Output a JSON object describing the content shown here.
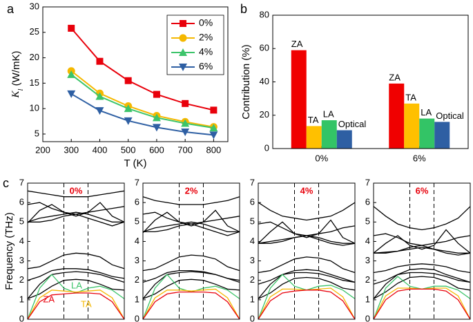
{
  "chart_data": [
    {
      "type": "line",
      "panel": "a",
      "xlabel": "T (K)",
      "ylabel_symbol": "K",
      "ylabel_subscript": "l",
      "ylabel_unit": "(W/mK)",
      "x": [
        300,
        400,
        500,
        600,
        700,
        800
      ],
      "xlim": [
        200,
        850
      ],
      "xticks": [
        200,
        300,
        400,
        500,
        600,
        700,
        800
      ],
      "ylim": [
        3.5,
        30
      ],
      "yticks": [
        5,
        10,
        15,
        20,
        25,
        30
      ],
      "legend": "upper right",
      "series": [
        {
          "name": "0%",
          "color": "#e8000b",
          "marker": "square",
          "values": [
            25.8,
            19.3,
            15.5,
            12.8,
            11.0,
            9.7
          ]
        },
        {
          "name": "2%",
          "color": "#f5b800",
          "marker": "circle",
          "values": [
            17.4,
            13.0,
            10.5,
            8.6,
            7.4,
            6.4
          ]
        },
        {
          "name": "4%",
          "color": "#3cc46a",
          "marker": "triangle-up",
          "values": [
            16.7,
            12.4,
            10.0,
            8.2,
            7.1,
            6.2
          ]
        },
        {
          "name": "6%",
          "color": "#2e5fa3",
          "marker": "triangle-down",
          "values": [
            12.9,
            9.6,
            7.6,
            6.3,
            5.4,
            4.8
          ]
        }
      ]
    },
    {
      "type": "bar",
      "panel": "b",
      "ylabel": "Contribution (%)",
      "categories": [
        "0%",
        "6%"
      ],
      "ylim": [
        0,
        80
      ],
      "yticks": [
        0,
        20,
        40,
        60,
        80
      ],
      "series": [
        {
          "name": "ZA",
          "color": "#f00000",
          "values": [
            59,
            39
          ]
        },
        {
          "name": "TA",
          "color": "#ffc000",
          "values": [
            13.5,
            27
          ]
        },
        {
          "name": "LA",
          "color": "#33c466",
          "values": [
            17,
            18
          ]
        },
        {
          "name": "Optical",
          "color": "#2e5fa3",
          "values": [
            11,
            16
          ]
        }
      ]
    },
    {
      "type": "dispersion",
      "panel": "c",
      "title": "0%",
      "ylabel": "Frequency (THz)",
      "x": [
        0,
        0.125,
        0.25,
        0.375,
        0.5,
        0.625,
        0.75,
        0.875,
        1
      ],
      "xlim": [
        0,
        1
      ],
      "vlines": [
        0.375,
        0.625
      ],
      "ylim": [
        0,
        7
      ],
      "yticks": [
        0,
        1,
        2,
        3,
        4,
        5,
        6,
        7
      ],
      "series": [
        {
          "name": "ZA",
          "color": "#e8000b",
          "values": [
            0,
            0.9,
            1.25,
            1.3,
            1.35,
            1.35,
            1.3,
            0.9,
            0
          ]
        },
        {
          "name": "TA",
          "color": "#f5b800",
          "values": [
            0,
            1.1,
            1.5,
            1.45,
            1.4,
            1.45,
            1.5,
            1.1,
            0
          ]
        },
        {
          "name": "LA",
          "color": "#3cc46a",
          "values": [
            0,
            1.6,
            2.3,
            1.6,
            1.35,
            1.6,
            1.7,
            1.5,
            1.05
          ]
        },
        {
          "color": "#000000",
          "values": [
            1.05,
            1.3,
            1.7,
            2.0,
            2.05,
            2.0,
            1.8,
            1.55,
            1.5
          ]
        },
        {
          "color": "#000000",
          "values": [
            1.05,
            1.8,
            2.3,
            2.4,
            2.45,
            2.4,
            2.3,
            2.1,
            1.9
          ]
        },
        {
          "color": "#000000",
          "values": [
            2.0,
            2.2,
            2.5,
            2.6,
            2.6,
            2.55,
            2.4,
            2.2,
            2.1
          ]
        },
        {
          "color": "#000000",
          "values": [
            2.6,
            2.7,
            3.0,
            3.3,
            3.4,
            3.35,
            3.2,
            2.8,
            2.6
          ]
        },
        {
          "color": "#000000",
          "values": [
            5.0,
            5.2,
            5.3,
            5.4,
            5.5,
            5.4,
            5.2,
            5.0,
            5.0
          ]
        },
        {
          "color": "#000000",
          "values": [
            4.95,
            5.6,
            5.9,
            5.5,
            5.3,
            5.5,
            6.0,
            5.3,
            5.0
          ]
        },
        {
          "color": "#000000",
          "values": [
            5.9,
            6.0,
            5.7,
            5.5,
            5.4,
            5.5,
            5.6,
            5.7,
            5.8
          ]
        },
        {
          "color": "#000000",
          "values": [
            6.6,
            6.5,
            6.4,
            6.3,
            6.3,
            6.3,
            6.4,
            6.5,
            6.6
          ]
        },
        {
          "color": "#000000",
          "values": [
            5.0,
            5.0,
            5.1,
            5.3,
            5.4,
            5.2,
            5.0,
            4.8,
            5.0
          ]
        }
      ]
    },
    {
      "type": "dispersion",
      "title": "2%",
      "x": [
        0,
        0.125,
        0.25,
        0.375,
        0.5,
        0.625,
        0.75,
        0.875,
        1
      ],
      "xlim": [
        0,
        1
      ],
      "vlines": [
        0.375,
        0.625
      ],
      "ylim": [
        0,
        7
      ],
      "yticks": [
        0,
        1,
        2,
        3,
        4,
        5,
        6,
        7
      ],
      "series": [
        {
          "color": "#e8000b",
          "values": [
            0,
            0.9,
            1.3,
            1.4,
            1.4,
            1.4,
            1.35,
            0.9,
            0
          ]
        },
        {
          "color": "#f5b800",
          "values": [
            0,
            1.1,
            1.5,
            1.5,
            1.45,
            1.5,
            1.55,
            1.1,
            0
          ]
        },
        {
          "color": "#3cc46a",
          "values": [
            0,
            1.6,
            2.3,
            1.6,
            1.4,
            1.6,
            1.7,
            1.5,
            1.05
          ]
        },
        {
          "color": "#000000",
          "values": [
            1.05,
            1.3,
            1.7,
            2.0,
            2.05,
            2.0,
            1.8,
            1.55,
            1.5
          ]
        },
        {
          "color": "#000000",
          "values": [
            1.05,
            1.8,
            2.3,
            2.4,
            2.45,
            2.4,
            2.3,
            2.1,
            1.9
          ]
        },
        {
          "color": "#000000",
          "values": [
            1.9,
            2.1,
            2.4,
            2.5,
            2.5,
            2.45,
            2.3,
            2.1,
            2.0
          ]
        },
        {
          "color": "#000000",
          "values": [
            2.5,
            2.6,
            2.9,
            3.2,
            3.3,
            3.25,
            3.1,
            2.7,
            2.5
          ]
        },
        {
          "color": "#000000",
          "values": [
            4.5,
            4.7,
            4.8,
            4.9,
            5.0,
            4.9,
            4.7,
            4.5,
            4.5
          ]
        },
        {
          "color": "#000000",
          "values": [
            4.45,
            5.1,
            5.5,
            5.0,
            4.8,
            5.0,
            5.6,
            4.8,
            4.5
          ]
        },
        {
          "color": "#000000",
          "values": [
            5.4,
            5.5,
            5.2,
            5.0,
            4.9,
            5.0,
            5.1,
            5.2,
            5.3
          ]
        },
        {
          "color": "#000000",
          "values": [
            6.3,
            6.1,
            6.0,
            5.9,
            5.9,
            5.9,
            6.0,
            6.1,
            6.3
          ]
        },
        {
          "color": "#000000",
          "values": [
            4.5,
            4.5,
            4.6,
            4.8,
            4.9,
            4.7,
            4.5,
            4.3,
            4.5
          ]
        }
      ]
    },
    {
      "type": "dispersion",
      "title": "4%",
      "x": [
        0,
        0.125,
        0.25,
        0.375,
        0.5,
        0.625,
        0.75,
        0.875,
        1
      ],
      "xlim": [
        0,
        1
      ],
      "vlines": [
        0.375,
        0.625
      ],
      "ylim": [
        0,
        7
      ],
      "yticks": [
        0,
        1,
        2,
        3,
        4,
        5,
        6,
        7
      ],
      "series": [
        {
          "color": "#e8000b",
          "values": [
            0,
            0.95,
            1.35,
            1.45,
            1.5,
            1.5,
            1.4,
            0.95,
            0
          ]
        },
        {
          "color": "#f5b800",
          "values": [
            0,
            1.15,
            1.55,
            1.55,
            1.5,
            1.55,
            1.6,
            1.15,
            0
          ]
        },
        {
          "color": "#3cc46a",
          "values": [
            0,
            1.6,
            2.3,
            1.7,
            1.5,
            1.7,
            1.75,
            1.5,
            1.05
          ]
        },
        {
          "color": "#000000",
          "values": [
            1.05,
            1.35,
            1.8,
            2.1,
            2.15,
            2.1,
            1.9,
            1.6,
            1.5
          ]
        },
        {
          "color": "#000000",
          "values": [
            1.05,
            1.8,
            2.3,
            2.5,
            2.55,
            2.5,
            2.3,
            2.1,
            1.9
          ]
        },
        {
          "color": "#000000",
          "values": [
            1.8,
            2.0,
            2.3,
            2.4,
            2.4,
            2.35,
            2.2,
            2.0,
            1.9
          ]
        },
        {
          "color": "#000000",
          "values": [
            2.4,
            2.5,
            2.8,
            3.1,
            3.2,
            3.15,
            3.0,
            2.6,
            2.4
          ]
        },
        {
          "color": "#000000",
          "values": [
            3.9,
            4.0,
            4.1,
            4.2,
            4.3,
            4.2,
            4.0,
            3.9,
            3.9
          ]
        },
        {
          "color": "#000000",
          "values": [
            3.9,
            4.5,
            5.0,
            4.4,
            4.2,
            4.4,
            5.1,
            4.2,
            3.9
          ]
        },
        {
          "color": "#000000",
          "values": [
            4.9,
            5.0,
            4.7,
            4.4,
            4.3,
            4.4,
            4.5,
            4.7,
            4.8
          ]
        },
        {
          "color": "#000000",
          "values": [
            6.0,
            5.6,
            5.3,
            5.2,
            5.1,
            5.2,
            5.3,
            5.6,
            6.0
          ]
        },
        {
          "color": "#000000",
          "values": [
            3.9,
            3.9,
            4.0,
            4.2,
            4.3,
            4.1,
            3.9,
            3.8,
            3.9
          ]
        }
      ]
    },
    {
      "type": "dispersion",
      "title": "6%",
      "x": [
        0,
        0.125,
        0.25,
        0.375,
        0.5,
        0.625,
        0.75,
        0.875,
        1
      ],
      "xlim": [
        0,
        1
      ],
      "vlines": [
        0.375,
        0.625
      ],
      "ylim": [
        0,
        7
      ],
      "yticks": [
        0,
        1,
        2,
        3,
        4,
        5,
        6,
        7
      ],
      "series": [
        {
          "color": "#e8000b",
          "values": [
            0,
            1.0,
            1.45,
            1.55,
            1.55,
            1.55,
            1.45,
            1.0,
            0
          ]
        },
        {
          "color": "#f5b800",
          "values": [
            0,
            1.2,
            1.6,
            1.6,
            1.55,
            1.6,
            1.6,
            1.2,
            0
          ]
        },
        {
          "color": "#3cc46a",
          "values": [
            0,
            1.6,
            2.2,
            1.7,
            1.55,
            1.7,
            1.7,
            1.5,
            1.05
          ]
        },
        {
          "color": "#000000",
          "values": [
            1.05,
            1.4,
            1.85,
            2.15,
            2.2,
            2.15,
            1.95,
            1.6,
            1.5
          ]
        },
        {
          "color": "#000000",
          "values": [
            1.05,
            1.8,
            2.3,
            2.55,
            2.6,
            2.55,
            2.3,
            2.1,
            1.9
          ]
        },
        {
          "color": "#000000",
          "values": [
            1.8,
            2.0,
            2.3,
            2.4,
            2.4,
            2.35,
            2.2,
            2.0,
            1.9
          ]
        },
        {
          "color": "#000000",
          "values": [
            2.4,
            2.5,
            2.7,
            2.8,
            2.85,
            2.8,
            2.7,
            2.5,
            2.4
          ]
        },
        {
          "color": "#000000",
          "values": [
            3.4,
            3.45,
            3.5,
            3.6,
            3.7,
            3.6,
            3.5,
            3.4,
            3.4
          ]
        },
        {
          "color": "#000000",
          "values": [
            3.4,
            3.9,
            4.3,
            3.8,
            3.6,
            3.8,
            4.6,
            3.9,
            3.4
          ]
        },
        {
          "color": "#000000",
          "values": [
            4.3,
            4.4,
            4.2,
            3.9,
            3.8,
            3.9,
            4.0,
            4.2,
            4.3
          ]
        },
        {
          "color": "#000000",
          "values": [
            5.8,
            5.3,
            4.9,
            4.7,
            4.6,
            4.7,
            4.9,
            5.2,
            5.8
          ]
        },
        {
          "color": "#000000",
          "values": [
            3.4,
            3.4,
            3.5,
            3.7,
            3.8,
            3.6,
            3.4,
            3.3,
            3.4
          ]
        }
      ]
    }
  ]
}
